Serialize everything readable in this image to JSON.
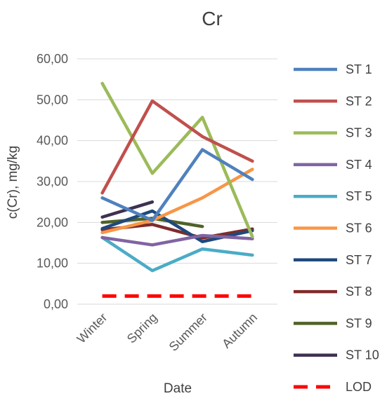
{
  "chart_data": {
    "type": "line",
    "title": "Cr",
    "xlabel": "Date",
    "ylabel": "c(Cr), mg/kg",
    "categories": [
      "Winter",
      "Spring",
      "Summer",
      "Autumn"
    ],
    "ylim": [
      0,
      60
    ],
    "yticks": [
      "0,00",
      "10,00",
      "20,00",
      "30,00",
      "40,00",
      "50,00",
      "60,00"
    ],
    "grid": "horizontal",
    "legend_position": "right",
    "series": [
      {
        "name": "ST 1",
        "color": "#4F81BD",
        "values": [
          26,
          20.5,
          37.8,
          30.5
        ]
      },
      {
        "name": "ST 2",
        "color": "#C0504D",
        "values": [
          27.2,
          49.7,
          41,
          35
        ]
      },
      {
        "name": "ST 3",
        "color": "#9BBB59",
        "values": [
          54,
          32,
          45.7,
          16.5
        ]
      },
      {
        "name": "ST 4",
        "color": "#8064A2",
        "values": [
          16.3,
          14.5,
          16.8,
          16
        ]
      },
      {
        "name": "ST 5",
        "color": "#4BACC6",
        "values": [
          16.3,
          8.2,
          13.5,
          12
        ]
      },
      {
        "name": "ST 6",
        "color": "#F79646",
        "values": [
          17.5,
          20.5,
          26,
          33
        ]
      },
      {
        "name": "ST 7",
        "color": "#1F497D",
        "values": [
          18.5,
          22.8,
          15.3,
          18
        ]
      },
      {
        "name": "ST 8",
        "color": "#7F2B2B",
        "values": [
          18.2,
          19.5,
          16.2,
          18.4
        ]
      },
      {
        "name": "ST 9",
        "color": "#4F6228",
        "values": [
          20,
          21,
          19,
          null
        ]
      },
      {
        "name": "ST 10",
        "color": "#3F3151",
        "values": [
          21.3,
          25,
          null,
          null
        ]
      },
      {
        "name": "LOD",
        "color": "#FF0000",
        "dashed": true,
        "values": [
          2,
          2,
          2,
          2
        ]
      }
    ]
  }
}
